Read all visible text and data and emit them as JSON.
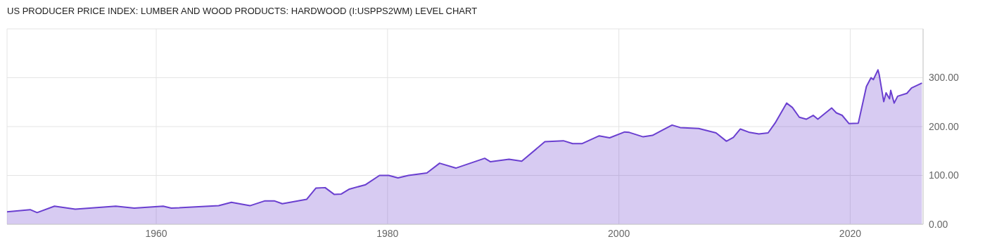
{
  "chart_data": {
    "type": "area",
    "title": "US PRODUCER PRICE INDEX: LUMBER AND WOOD PRODUCTS: HARDWOOD (I:USPPS2WM) LEVEL CHART",
    "x": [
      1947.1,
      1949.1,
      1949.7,
      1951.2,
      1953.0,
      1956.5,
      1958.1,
      1960.6,
      1961.3,
      1965.4,
      1966.5,
      1968.1,
      1969.4,
      1970.2,
      1970.9,
      1973.0,
      1973.8,
      1974.6,
      1975.4,
      1976.0,
      1976.7,
      1978.1,
      1979.3,
      1980.1,
      1980.9,
      1981.8,
      1983.4,
      1984.5,
      1985.9,
      1988.4,
      1988.9,
      1990.5,
      1991.6,
      1993.6,
      1995.2,
      1996.0,
      1996.8,
      1998.3,
      1999.2,
      2000.5,
      2000.9,
      2002.1,
      2002.9,
      2003.7,
      2004.6,
      2005.3,
      2006.9,
      2008.4,
      2009.3,
      2009.9,
      2010.5,
      2011.3,
      2012.1,
      2012.9,
      2013.5,
      2014.5,
      2015.0,
      2015.6,
      2016.2,
      2016.8,
      2017.2,
      2018.4,
      2018.8,
      2019.3,
      2019.9,
      2020.7,
      2021.4,
      2021.8,
      2022.0,
      2022.4,
      2022.5,
      2022.9,
      2023.1,
      2023.4,
      2023.5,
      2023.8,
      2024.1,
      2024.9,
      2025.3,
      2026.2
    ],
    "series": [
      {
        "color": "#6a3fd0",
        "values": [
          25.5,
          30,
          24,
          37,
          31,
          37,
          33,
          37,
          33,
          38,
          45,
          38,
          48,
          48,
          42,
          51,
          74,
          75,
          61,
          62,
          72,
          81,
          100,
          100,
          95,
          100,
          105,
          125,
          115,
          135,
          128,
          133,
          129,
          169,
          171,
          165,
          165,
          181,
          177,
          189,
          188,
          179,
          182,
          192,
          203,
          198,
          196,
          187,
          170,
          178,
          195,
          188,
          185,
          187,
          207,
          248,
          239,
          219,
          215,
          223,
          215,
          238,
          228,
          223,
          206,
          207,
          282,
          300,
          296,
          316,
          307,
          251,
          269,
          257,
          274,
          248,
          262,
          268,
          279,
          289
        ]
      }
    ],
    "xlim": [
      1947.1,
      2026.3
    ],
    "xticks": [
      1960,
      1980,
      2000,
      2020
    ],
    "ylim": [
      0,
      400
    ],
    "yticks": [
      {
        "value": 0,
        "label": "0.00"
      },
      {
        "value": 100,
        "label": "100.00"
      },
      {
        "value": 200,
        "label": "200.00"
      },
      {
        "value": 300,
        "label": "300.00"
      }
    ],
    "grid": true,
    "legend": false
  }
}
